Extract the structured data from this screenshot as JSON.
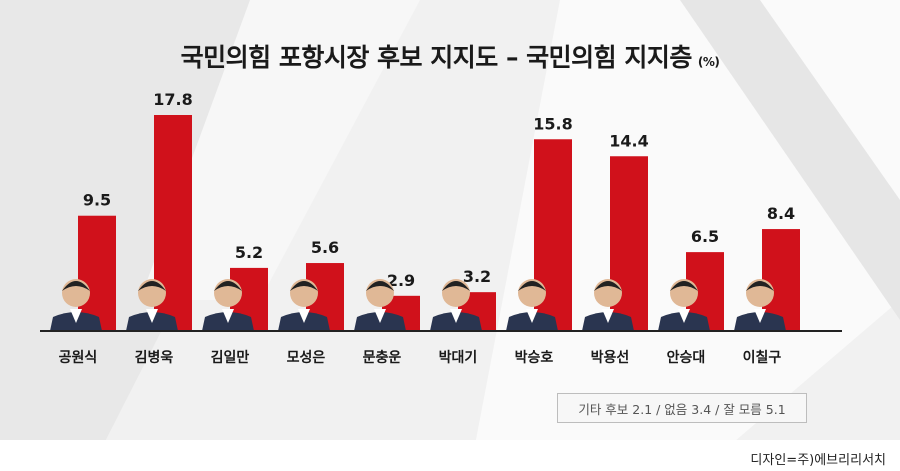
{
  "title": "국민의힘 포항시장 후보 지지도 – 국민의힘 지지층",
  "unit": "(%)",
  "note": "기타 후보 2.1 / 없음 3.4 / 잘 모름 5.1",
  "credit": "디자인=주)에브리리서치",
  "colors": {
    "bar": "#d0111b",
    "baseline": "#222222",
    "suit": "#2a3550"
  },
  "chart_data": {
    "type": "bar",
    "title": "국민의힘 포항시장 후보 지지도 – 국민의힘 지지층",
    "unit": "(%)",
    "categories": [
      "공원식",
      "김병욱",
      "김일만",
      "모성은",
      "문충운",
      "박대기",
      "박승호",
      "박용선",
      "안승대",
      "이칠구"
    ],
    "values": [
      9.5,
      17.8,
      5.2,
      5.6,
      2.9,
      3.2,
      15.8,
      14.4,
      6.5,
      8.4
    ],
    "ylim": [
      0,
      17.8
    ],
    "grid": false,
    "legend": "none",
    "other_responses": [
      {
        "label": "기타 후보",
        "value": 2.1
      },
      {
        "label": "없음",
        "value": 3.4
      },
      {
        "label": "잘 모름",
        "value": 5.1
      }
    ]
  }
}
